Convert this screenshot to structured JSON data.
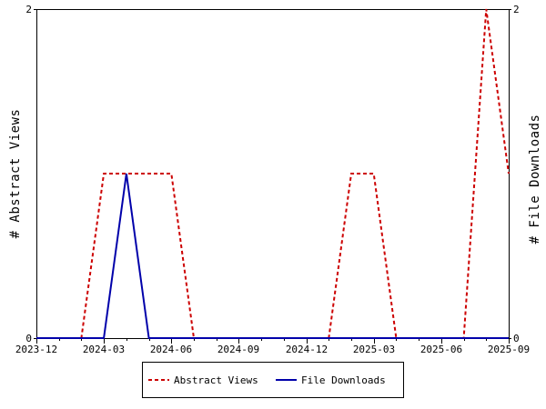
{
  "chart_data": {
    "type": "line",
    "title": "",
    "xlabel": "",
    "ylabel_left": "# Abstract Views",
    "ylabel_right": "# File Downloads",
    "x_ticks": [
      "2023-12",
      "2024-03",
      "2024-06",
      "2024-09",
      "2024-12",
      "2025-03",
      "2025-06",
      "2025-09"
    ],
    "x": [
      "2023-12",
      "2024-01",
      "2024-02",
      "2024-03",
      "2024-04",
      "2024-05",
      "2024-06",
      "2024-07",
      "2024-08",
      "2024-09",
      "2024-10",
      "2024-11",
      "2024-12",
      "2025-01",
      "2025-02",
      "2025-03",
      "2025-04",
      "2025-05",
      "2025-06",
      "2025-07",
      "2025-08",
      "2025-09"
    ],
    "xlim": [
      "2023-12",
      "2025-09"
    ],
    "ylim_left": [
      0,
      2
    ],
    "ylim_right": [
      0,
      2
    ],
    "y_ticks_left": [
      "0",
      "2"
    ],
    "y_ticks_right": [
      "0",
      "2"
    ],
    "grid": false,
    "legend_position": "bottom-center",
    "series": [
      {
        "name": "Abstract Views",
        "axis": "left",
        "color": "#cc0000",
        "style": "dashed",
        "values": [
          0,
          0,
          0,
          1,
          1,
          1,
          1,
          0,
          0,
          0,
          0,
          0,
          0,
          0,
          1,
          1,
          0,
          0,
          0,
          0,
          2,
          1
        ]
      },
      {
        "name": "File Downloads",
        "axis": "right",
        "color": "#0000aa",
        "style": "solid",
        "values": [
          0,
          0,
          0,
          0,
          1,
          0,
          0,
          0,
          0,
          0,
          0,
          0,
          0,
          0,
          0,
          0,
          0,
          0,
          0,
          0,
          0,
          0
        ]
      }
    ]
  }
}
